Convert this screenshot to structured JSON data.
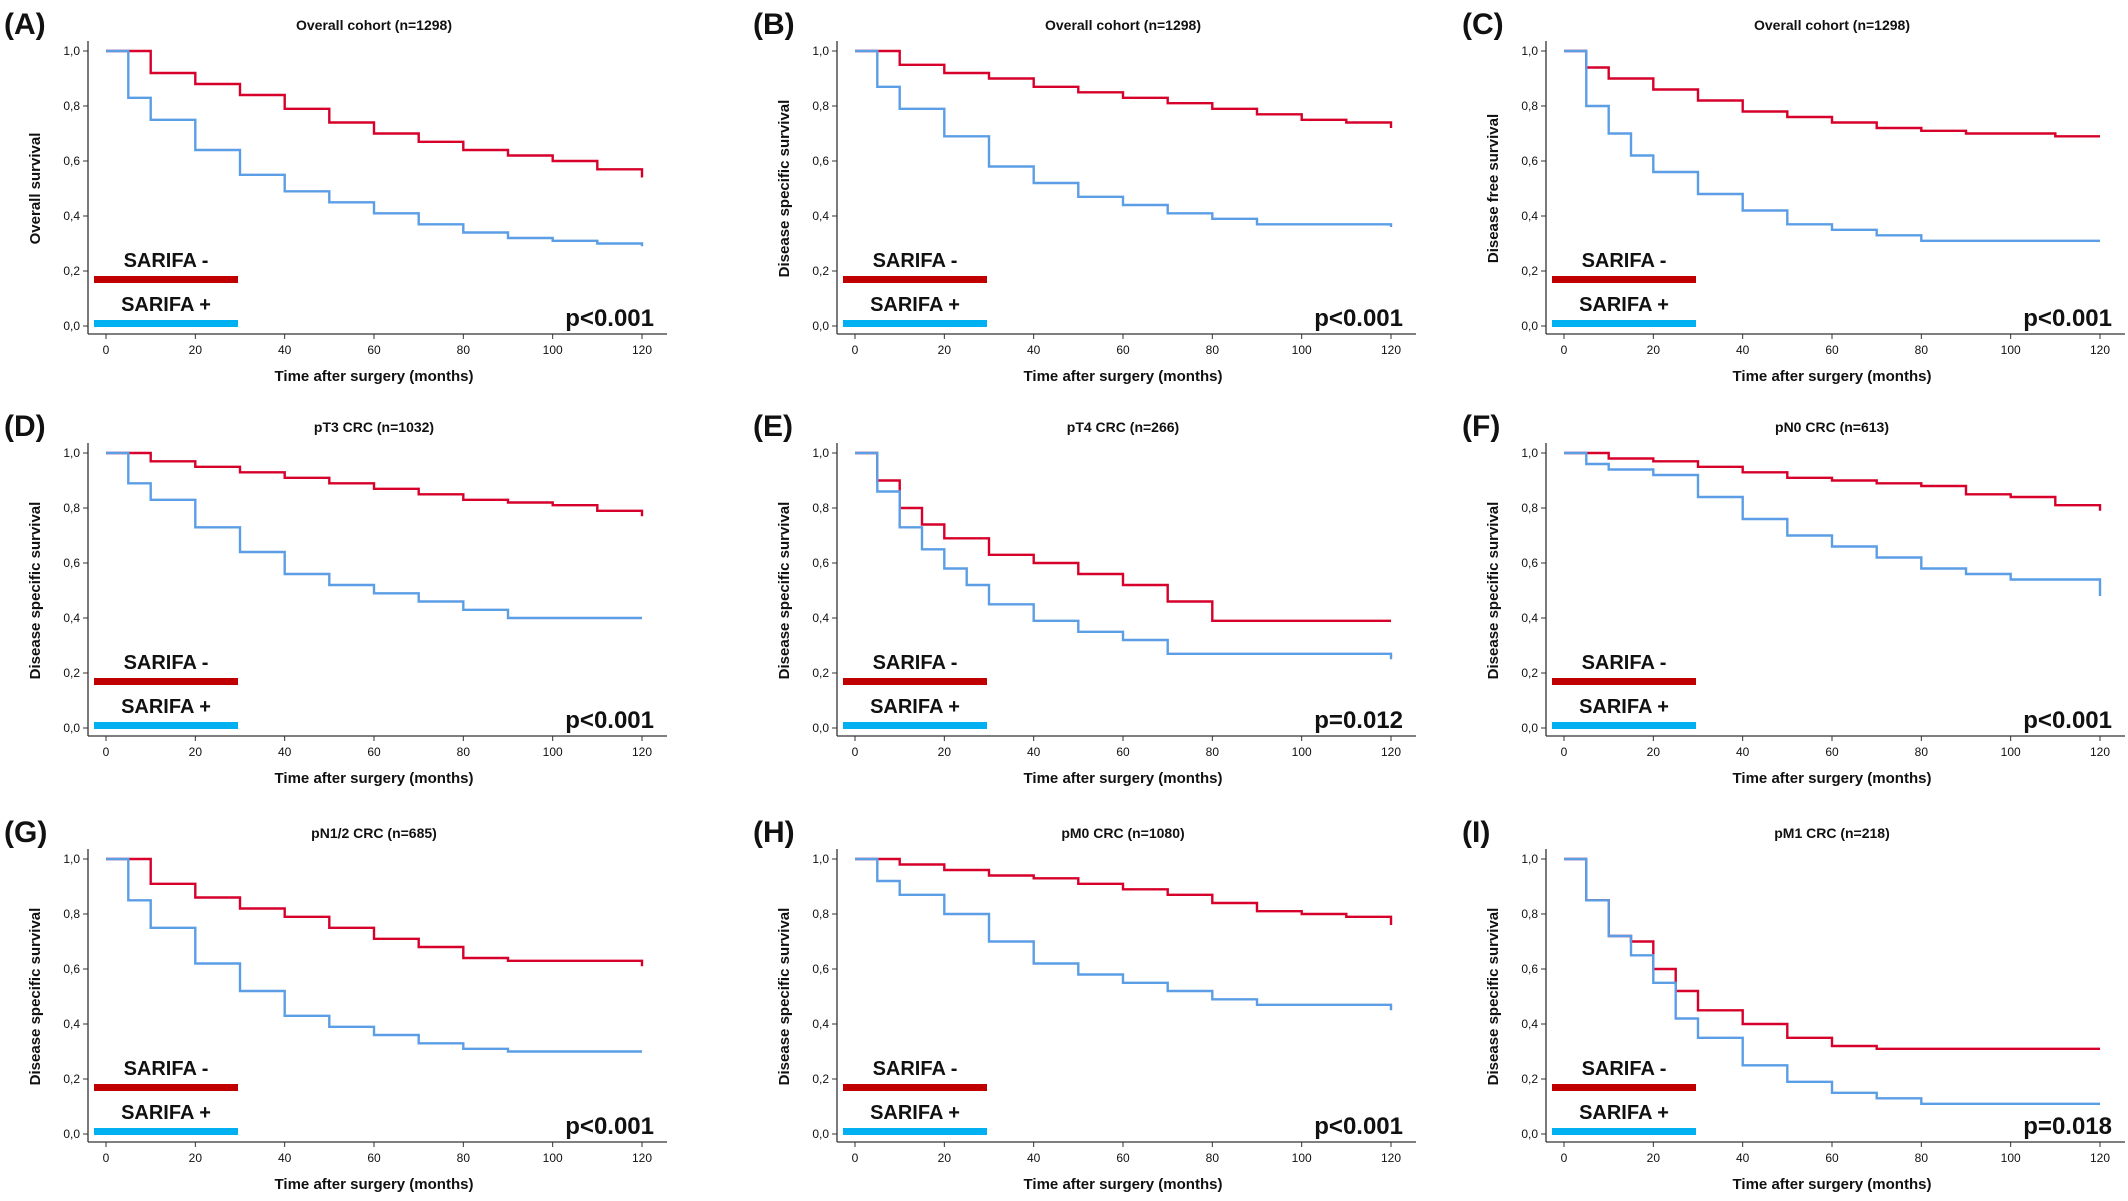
{
  "colors": {
    "sarifa_negative_curve": "#d6002a",
    "sarifa_positive_curve": "#5b9ee6",
    "sarifa_negative_legend": "#c00000",
    "sarifa_positive_legend": "#00b0f0"
  },
  "legend": {
    "negative_label": "SARIFA -",
    "positive_label": "SARIFA +"
  },
  "chart_data": [
    {
      "type": "line",
      "panel": "(A)",
      "title": "Overall cohort (n=1298)",
      "xlabel": "Time after surgery (months)",
      "ylabel": "Overall survival",
      "xticks": [
        "0",
        "20",
        "40",
        "60",
        "80",
        "100",
        "120"
      ],
      "yticks": [
        "0,0",
        "0,2",
        "0,4",
        "0,6",
        "0,8",
        "1,0"
      ],
      "xlim": [
        0,
        120
      ],
      "ylim": [
        0,
        1
      ],
      "p_value": "p<0.001",
      "series": [
        {
          "name": "SARIFA -",
          "x": [
            0,
            10,
            20,
            30,
            40,
            50,
            60,
            70,
            80,
            90,
            100,
            110,
            120
          ],
          "y": [
            1.0,
            0.92,
            0.88,
            0.84,
            0.79,
            0.74,
            0.7,
            0.67,
            0.64,
            0.62,
            0.6,
            0.57,
            0.54
          ]
        },
        {
          "name": "SARIFA +",
          "x": [
            0,
            5,
            10,
            20,
            30,
            40,
            50,
            60,
            70,
            80,
            90,
            100,
            110,
            120
          ],
          "y": [
            1.0,
            0.83,
            0.75,
            0.64,
            0.55,
            0.49,
            0.45,
            0.41,
            0.37,
            0.34,
            0.32,
            0.31,
            0.3,
            0.29
          ]
        }
      ]
    },
    {
      "type": "line",
      "panel": "(B)",
      "title": "Overall cohort (n=1298)",
      "xlabel": "Time after surgery (months)",
      "ylabel": "Disease specific survival",
      "xticks": [
        "0",
        "20",
        "40",
        "60",
        "80",
        "100",
        "120"
      ],
      "yticks": [
        "0,0",
        "0,2",
        "0,4",
        "0,6",
        "0,8",
        "1,0"
      ],
      "xlim": [
        0,
        120
      ],
      "ylim": [
        0,
        1
      ],
      "p_value": "p<0.001",
      "series": [
        {
          "name": "SARIFA -",
          "x": [
            0,
            10,
            20,
            30,
            40,
            50,
            60,
            70,
            80,
            90,
            100,
            110,
            120
          ],
          "y": [
            1.0,
            0.95,
            0.92,
            0.9,
            0.87,
            0.85,
            0.83,
            0.81,
            0.79,
            0.77,
            0.75,
            0.74,
            0.72
          ]
        },
        {
          "name": "SARIFA +",
          "x": [
            0,
            5,
            10,
            20,
            30,
            40,
            50,
            60,
            70,
            80,
            90,
            100,
            110,
            120
          ],
          "y": [
            1.0,
            0.87,
            0.79,
            0.69,
            0.58,
            0.52,
            0.47,
            0.44,
            0.41,
            0.39,
            0.37,
            0.37,
            0.37,
            0.36
          ]
        }
      ]
    },
    {
      "type": "line",
      "panel": "(C)",
      "title": "Overall cohort (n=1298)",
      "xlabel": "Time after surgery (months)",
      "ylabel": "Disease free survival",
      "xticks": [
        "0",
        "20",
        "40",
        "60",
        "80",
        "100",
        "120"
      ],
      "yticks": [
        "0,0",
        "0,2",
        "0,4",
        "0,6",
        "0,8",
        "1,0"
      ],
      "xlim": [
        0,
        120
      ],
      "ylim": [
        0,
        1
      ],
      "p_value": "p<0.001",
      "series": [
        {
          "name": "SARIFA -",
          "x": [
            0,
            5,
            10,
            20,
            30,
            40,
            50,
            60,
            70,
            80,
            90,
            100,
            110,
            120
          ],
          "y": [
            1.0,
            0.94,
            0.9,
            0.86,
            0.82,
            0.78,
            0.76,
            0.74,
            0.72,
            0.71,
            0.7,
            0.7,
            0.69,
            0.69
          ]
        },
        {
          "name": "SARIFA +",
          "x": [
            0,
            5,
            10,
            15,
            20,
            30,
            40,
            50,
            60,
            70,
            80,
            90,
            100,
            110,
            120
          ],
          "y": [
            1.0,
            0.8,
            0.7,
            0.62,
            0.56,
            0.48,
            0.42,
            0.37,
            0.35,
            0.33,
            0.31,
            0.31,
            0.31,
            0.31,
            0.31
          ]
        }
      ]
    },
    {
      "type": "line",
      "panel": "(D)",
      "title": "pT3 CRC (n=1032)",
      "xlabel": "Time after surgery (months)",
      "ylabel": "Disease specific survival",
      "xticks": [
        "0",
        "20",
        "40",
        "60",
        "80",
        "100",
        "120"
      ],
      "yticks": [
        "0,0",
        "0,2",
        "0,4",
        "0,6",
        "0,8",
        "1,0"
      ],
      "xlim": [
        0,
        120
      ],
      "ylim": [
        0,
        1
      ],
      "p_value": "p<0.001",
      "series": [
        {
          "name": "SARIFA -",
          "x": [
            0,
            10,
            20,
            30,
            40,
            50,
            60,
            70,
            80,
            90,
            100,
            110,
            120
          ],
          "y": [
            1.0,
            0.97,
            0.95,
            0.93,
            0.91,
            0.89,
            0.87,
            0.85,
            0.83,
            0.82,
            0.81,
            0.79,
            0.77
          ]
        },
        {
          "name": "SARIFA +",
          "x": [
            0,
            5,
            10,
            20,
            30,
            40,
            50,
            60,
            70,
            80,
            90,
            100,
            110,
            120
          ],
          "y": [
            1.0,
            0.89,
            0.83,
            0.73,
            0.64,
            0.56,
            0.52,
            0.49,
            0.46,
            0.43,
            0.4,
            0.4,
            0.4,
            0.4
          ]
        }
      ]
    },
    {
      "type": "line",
      "panel": "(E)",
      "title": "pT4 CRC (n=266)",
      "xlabel": "Time after surgery (months)",
      "ylabel": "Disease specific survival",
      "xticks": [
        "0",
        "20",
        "40",
        "60",
        "80",
        "100",
        "120"
      ],
      "yticks": [
        "0,0",
        "0,2",
        "0,4",
        "0,6",
        "0,8",
        "1,0"
      ],
      "xlim": [
        0,
        120
      ],
      "ylim": [
        0,
        1
      ],
      "p_value": "p=0.012",
      "series": [
        {
          "name": "SARIFA -",
          "x": [
            0,
            5,
            10,
            15,
            20,
            30,
            40,
            50,
            60,
            70,
            80,
            90,
            100,
            110,
            120
          ],
          "y": [
            1.0,
            0.9,
            0.8,
            0.74,
            0.69,
            0.63,
            0.6,
            0.56,
            0.52,
            0.46,
            0.39,
            0.39,
            0.39,
            0.39,
            0.39
          ]
        },
        {
          "name": "SARIFA +",
          "x": [
            0,
            5,
            10,
            15,
            20,
            25,
            30,
            40,
            50,
            60,
            70,
            80,
            90,
            100,
            110,
            120
          ],
          "y": [
            1.0,
            0.86,
            0.73,
            0.65,
            0.58,
            0.52,
            0.45,
            0.39,
            0.35,
            0.32,
            0.27,
            0.27,
            0.27,
            0.27,
            0.27,
            0.25
          ]
        }
      ]
    },
    {
      "type": "line",
      "panel": "(F)",
      "title": "pN0 CRC (n=613)",
      "xlabel": "Time after surgery (months)",
      "ylabel": "Disease specific survival",
      "xticks": [
        "0",
        "20",
        "40",
        "60",
        "80",
        "100",
        "120"
      ],
      "yticks": [
        "0,0",
        "0,2",
        "0,4",
        "0,6",
        "0,8",
        "1,0"
      ],
      "xlim": [
        0,
        120
      ],
      "ylim": [
        0,
        1
      ],
      "p_value": "p<0.001",
      "series": [
        {
          "name": "SARIFA -",
          "x": [
            0,
            10,
            20,
            30,
            40,
            50,
            60,
            70,
            80,
            90,
            100,
            110,
            120
          ],
          "y": [
            1.0,
            0.98,
            0.97,
            0.95,
            0.93,
            0.91,
            0.9,
            0.89,
            0.88,
            0.85,
            0.84,
            0.81,
            0.79
          ]
        },
        {
          "name": "SARIFA +",
          "x": [
            0,
            5,
            10,
            20,
            30,
            40,
            50,
            60,
            70,
            80,
            90,
            100,
            110,
            120
          ],
          "y": [
            1.0,
            0.96,
            0.94,
            0.92,
            0.84,
            0.76,
            0.7,
            0.66,
            0.62,
            0.58,
            0.56,
            0.54,
            0.54,
            0.48
          ]
        }
      ]
    },
    {
      "type": "line",
      "panel": "(G)",
      "title": "pN1/2 CRC (n=685)",
      "xlabel": "Time after surgery (months)",
      "ylabel": "Disease specific survival",
      "xticks": [
        "0",
        "20",
        "40",
        "60",
        "80",
        "100",
        "120"
      ],
      "yticks": [
        "0,0",
        "0,2",
        "0,4",
        "0,6",
        "0,8",
        "1,0"
      ],
      "xlim": [
        0,
        120
      ],
      "ylim": [
        0,
        1
      ],
      "p_value": "p<0.001",
      "series": [
        {
          "name": "SARIFA -",
          "x": [
            0,
            10,
            20,
            30,
            40,
            50,
            60,
            70,
            80,
            90,
            100,
            110,
            120
          ],
          "y": [
            1.0,
            0.91,
            0.86,
            0.82,
            0.79,
            0.75,
            0.71,
            0.68,
            0.64,
            0.63,
            0.63,
            0.63,
            0.61
          ]
        },
        {
          "name": "SARIFA +",
          "x": [
            0,
            5,
            10,
            20,
            30,
            40,
            50,
            60,
            70,
            80,
            90,
            100,
            110,
            120
          ],
          "y": [
            1.0,
            0.85,
            0.75,
            0.62,
            0.52,
            0.43,
            0.39,
            0.36,
            0.33,
            0.31,
            0.3,
            0.3,
            0.3,
            0.3
          ]
        }
      ]
    },
    {
      "type": "line",
      "panel": "(H)",
      "title": "pM0 CRC (n=1080)",
      "xlabel": "Time after surgery (months)",
      "ylabel": "Disease specific survival",
      "xticks": [
        "0",
        "20",
        "40",
        "60",
        "80",
        "100",
        "120"
      ],
      "yticks": [
        "0,0",
        "0,2",
        "0,4",
        "0,6",
        "0,8",
        "1,0"
      ],
      "xlim": [
        0,
        120
      ],
      "ylim": [
        0,
        1
      ],
      "p_value": "p<0.001",
      "series": [
        {
          "name": "SARIFA -",
          "x": [
            0,
            10,
            20,
            30,
            40,
            50,
            60,
            70,
            80,
            90,
            100,
            110,
            120
          ],
          "y": [
            1.0,
            0.98,
            0.96,
            0.94,
            0.93,
            0.91,
            0.89,
            0.87,
            0.84,
            0.81,
            0.8,
            0.79,
            0.76
          ]
        },
        {
          "name": "SARIFA +",
          "x": [
            0,
            5,
            10,
            20,
            30,
            40,
            50,
            60,
            70,
            80,
            90,
            100,
            110,
            120
          ],
          "y": [
            1.0,
            0.92,
            0.87,
            0.8,
            0.7,
            0.62,
            0.58,
            0.55,
            0.52,
            0.49,
            0.47,
            0.47,
            0.47,
            0.45
          ]
        }
      ]
    },
    {
      "type": "line",
      "panel": "(I)",
      "title": "pM1 CRC (n=218)",
      "xlabel": "Time after surgery (months)",
      "ylabel": "Disease specific survival",
      "xticks": [
        "0",
        "20",
        "40",
        "60",
        "80",
        "100",
        "120"
      ],
      "yticks": [
        "0,0",
        "0,2",
        "0,4",
        "0,6",
        "0,8",
        "1,0"
      ],
      "xlim": [
        0,
        120
      ],
      "ylim": [
        0,
        1
      ],
      "p_value": "p=0.018",
      "series": [
        {
          "name": "SARIFA -",
          "x": [
            0,
            5,
            10,
            15,
            20,
            25,
            30,
            40,
            50,
            60,
            70,
            80,
            90,
            100,
            110,
            120
          ],
          "y": [
            1.0,
            0.85,
            0.72,
            0.7,
            0.6,
            0.52,
            0.45,
            0.4,
            0.35,
            0.32,
            0.31,
            0.31,
            0.31,
            0.31,
            0.31,
            0.31
          ]
        },
        {
          "name": "SARIFA +",
          "x": [
            0,
            5,
            10,
            15,
            20,
            25,
            30,
            40,
            50,
            60,
            70,
            80,
            90,
            100,
            110,
            120
          ],
          "y": [
            1.0,
            0.85,
            0.72,
            0.65,
            0.55,
            0.42,
            0.35,
            0.25,
            0.19,
            0.15,
            0.13,
            0.11,
            0.11,
            0.11,
            0.11,
            0.11
          ]
        }
      ]
    }
  ]
}
